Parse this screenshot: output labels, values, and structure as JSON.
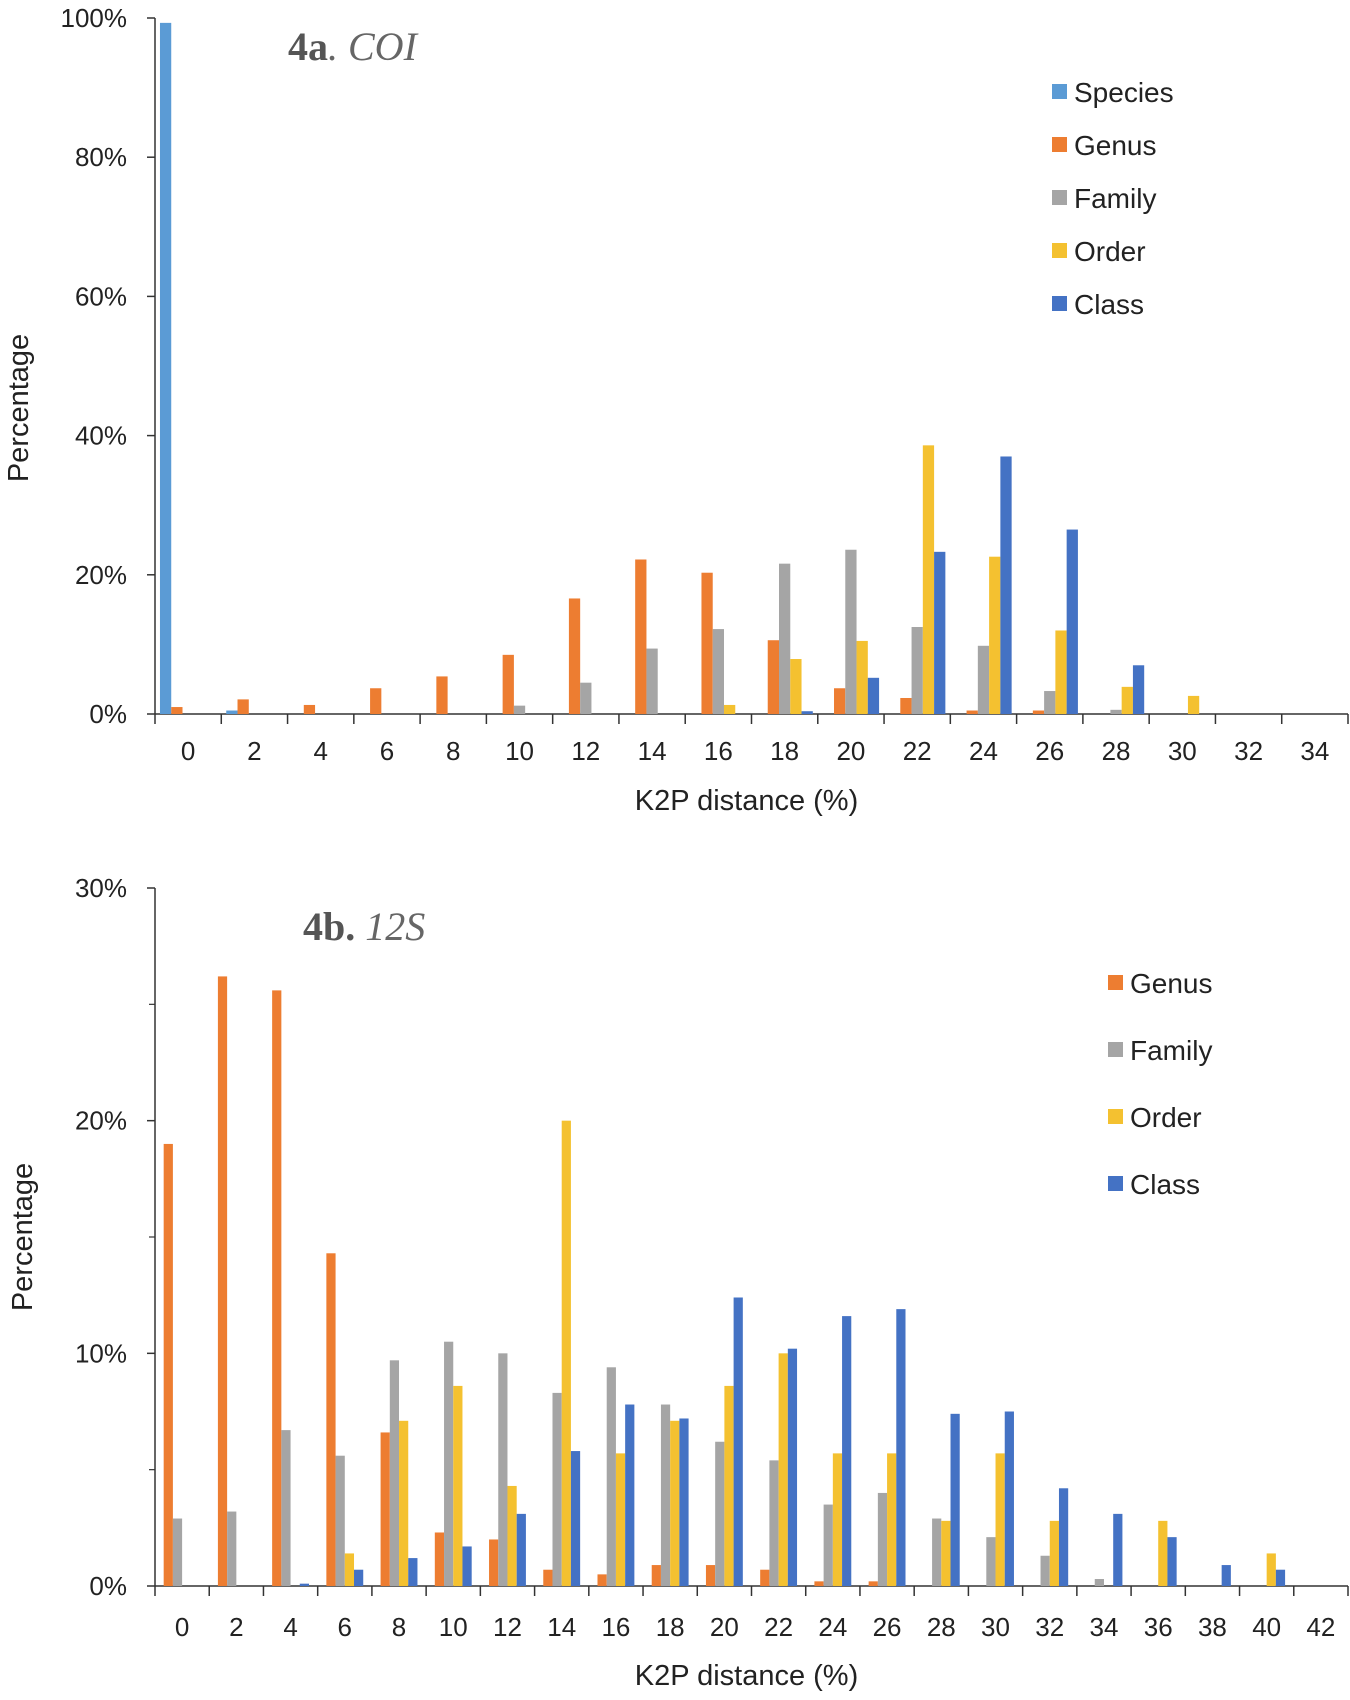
{
  "chart_data": [
    {
      "type": "bar",
      "title_bold": "4a",
      "title_italic": "COI",
      "xlabel": "K2P distance (%)",
      "ylabel": "Percentage",
      "ylim": [
        0,
        100
      ],
      "yticks": [
        "0%",
        "20%",
        "40%",
        "60%",
        "80%",
        "100%"
      ],
      "categories": [
        "0",
        "2",
        "4",
        "6",
        "8",
        "10",
        "12",
        "14",
        "16",
        "18",
        "20",
        "22",
        "24",
        "26",
        "28",
        "30",
        "32",
        "34"
      ],
      "series": [
        {
          "name": "Species",
          "color": "#5B9BD5",
          "values": [
            99.3,
            0.5,
            0,
            0,
            0,
            0,
            0,
            0,
            0,
            0,
            0,
            0,
            0,
            0,
            0,
            0,
            0,
            0
          ]
        },
        {
          "name": "Genus",
          "color": "#ED7D31",
          "values": [
            1.0,
            2.1,
            1.3,
            3.7,
            5.4,
            8.5,
            16.6,
            22.2,
            20.3,
            10.6,
            3.7,
            2.3,
            0.5,
            0.5,
            0,
            0,
            0,
            0
          ]
        },
        {
          "name": "Family",
          "color": "#A5A5A5",
          "values": [
            0,
            0,
            0,
            0,
            0,
            1.2,
            4.5,
            9.4,
            12.2,
            21.6,
            23.6,
            12.5,
            9.8,
            3.3,
            0.6,
            0,
            0,
            0
          ]
        },
        {
          "name": "Order",
          "color": "#F4C130",
          "values": [
            0,
            0,
            0,
            0,
            0,
            0,
            0,
            0,
            1.3,
            7.9,
            10.5,
            38.6,
            22.6,
            12.0,
            3.9,
            2.6,
            0,
            0
          ]
        },
        {
          "name": "Class",
          "color": "#4472C4",
          "values": [
            0,
            0,
            0,
            0,
            0,
            0,
            0,
            0,
            0,
            0.4,
            5.2,
            23.3,
            37.0,
            26.5,
            7.0,
            0,
            0,
            0
          ]
        }
      ]
    },
    {
      "type": "bar",
      "title_bold": "4b.",
      "title_italic": "12S",
      "xlabel": "K2P distance (%)",
      "ylabel": "Percentage",
      "ylim": [
        0,
        30
      ],
      "yticks": [
        "0%",
        "10%",
        "20%",
        "30%"
      ],
      "categories": [
        "0",
        "2",
        "4",
        "6",
        "8",
        "10",
        "12",
        "14",
        "16",
        "18",
        "20",
        "22",
        "24",
        "26",
        "28",
        "30",
        "32",
        "34",
        "36",
        "38",
        "40",
        "42"
      ],
      "series": [
        {
          "name": "Genus",
          "color": "#ED7D31",
          "values": [
            19.0,
            26.2,
            25.6,
            14.3,
            6.6,
            2.3,
            2.0,
            0.7,
            0.5,
            0.9,
            0.9,
            0.7,
            0.2,
            0.2,
            0,
            0,
            0,
            0,
            0,
            0,
            0,
            0
          ]
        },
        {
          "name": "Family",
          "color": "#A5A5A5",
          "values": [
            2.9,
            3.2,
            6.7,
            5.6,
            9.7,
            10.5,
            10.0,
            8.3,
            9.4,
            7.8,
            6.2,
            5.4,
            3.5,
            4.0,
            2.9,
            2.1,
            1.3,
            0.3,
            0,
            0,
            0,
            0
          ]
        },
        {
          "name": "Order",
          "color": "#F4C130",
          "values": [
            0,
            0,
            0,
            1.4,
            7.1,
            8.6,
            4.3,
            20.0,
            5.7,
            7.1,
            8.6,
            10.0,
            5.7,
            5.7,
            2.8,
            5.7,
            2.8,
            0,
            2.8,
            0,
            1.4,
            0
          ]
        },
        {
          "name": "Class",
          "color": "#4472C4",
          "values": [
            0,
            0,
            0.1,
            0.7,
            1.2,
            1.7,
            3.1,
            5.8,
            7.8,
            7.2,
            12.4,
            10.2,
            11.6,
            11.9,
            7.4,
            7.5,
            4.2,
            3.1,
            2.1,
            0.9,
            0.7,
            0
          ]
        }
      ]
    }
  ]
}
